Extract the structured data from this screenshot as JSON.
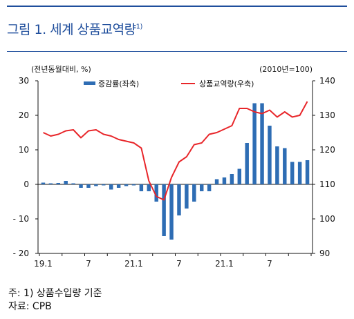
{
  "title": "그림 1. 세계 상품교역량",
  "title_sup": "1)",
  "left_unit": "(전년동월대비, %)",
  "right_unit": "(2010년=100)",
  "notes": [
    "주: 1) 상품수입량 기준",
    "자료: CPB"
  ],
  "colors": {
    "bar": "#2e6db4",
    "line": "#e8262a",
    "rule": "#1f4e9c"
  },
  "chart_data": {
    "type": "bar",
    "x_tick_labels": [
      "19.1",
      "7",
      "21.1",
      "7",
      "21.1",
      "7"
    ],
    "y_left": {
      "min": -20,
      "max": 30,
      "ticks": [
        30,
        20,
        10,
        0,
        -10,
        -20
      ],
      "tick_labels": [
        "30",
        "20",
        "10",
        "0",
        "- 10",
        "- 20"
      ]
    },
    "y_right": {
      "min": 90,
      "max": 140,
      "ticks": [
        140,
        130,
        120,
        110,
        100,
        90
      ],
      "tick_labels": [
        "140",
        "130",
        "120",
        "110",
        "100",
        "90"
      ]
    },
    "series": [
      {
        "name": "증감률(좌축)",
        "type": "bar",
        "axis": "left",
        "values": [
          0.5,
          0.3,
          0.4,
          1.0,
          0.3,
          -1.0,
          -1.0,
          -0.5,
          -0.3,
          -1.5,
          -1.0,
          -0.5,
          -0.3,
          -2.0,
          -2.0,
          -5.0,
          -15.0,
          -16.0,
          -9.0,
          -7.0,
          -5.0,
          -2.0,
          -2.0,
          1.5,
          2.0,
          3.0,
          4.5,
          12.0,
          23.5,
          23.5,
          17.0,
          11.0,
          10.5,
          6.5,
          6.5,
          7.0
        ]
      },
      {
        "name": "상품교역량(우축)",
        "type": "line",
        "axis": "right",
        "values": [
          125.0,
          124.0,
          124.5,
          125.5,
          125.8,
          123.5,
          125.5,
          125.8,
          124.5,
          124.0,
          123.0,
          122.5,
          122.0,
          120.5,
          111.0,
          106.5,
          105.5,
          112.0,
          116.5,
          118.0,
          121.5,
          122.0,
          124.5,
          125.0,
          126.0,
          127.0,
          132.0,
          132.0,
          131.0,
          130.5,
          131.5,
          129.5,
          131.0,
          129.5,
          130.0,
          134.0
        ]
      }
    ]
  }
}
